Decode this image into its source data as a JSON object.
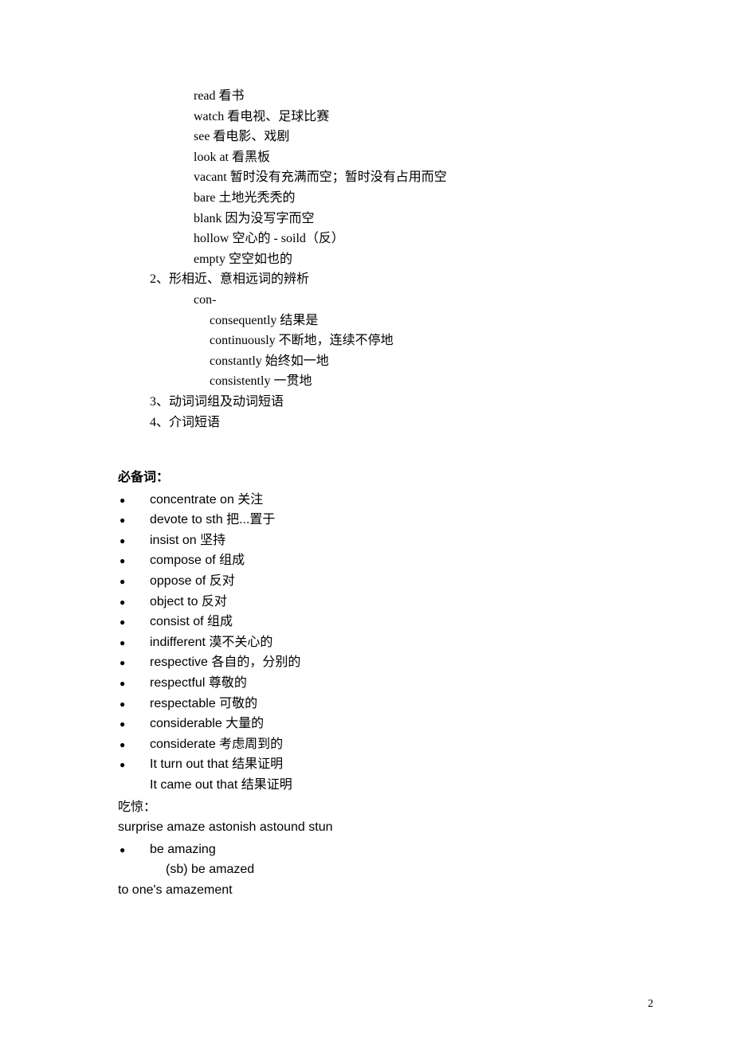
{
  "indentedWords": [
    "read   看书",
    "watch   看电视、足球比赛",
    "see   看电影、戏剧",
    "look at   看黑板",
    "vacant   暂时没有充满而空；暂时没有占用而空",
    "bare   土地光秃秃的",
    "blank   因为没写字而空",
    "hollow   空心的  - soild（反）",
    "empty   空空如也的"
  ],
  "numbered": {
    "item2": "2、形相近、意相远词的辨析",
    "conHead": "con-",
    "conSub": [
      "consequently   结果是",
      "continuously   不断地，连续不停地",
      "constantly   始终如一地",
      "consistently   一贯地"
    ],
    "item3": "3、动词词组及动词短语",
    "item4": "4、介词短语"
  },
  "mustKnowTitle": "必备词：",
  "mustKnowList": [
    "concentrate  on   关注",
    "devote to sth   把...置于",
    "insist on    坚持",
    "compose of 组成",
    "oppose of   反对",
    "object to   反对",
    "consist of   组成",
    "indifferent   漠不关心的",
    "respective   各自的，分别的",
    "respectful   尊敬的",
    "respectable   可敬的",
    "considerable   大量的",
    "considerate   考虑周到的",
    "It turn out that    结果证明"
  ],
  "noBulletLine": "It came out that   结果证明",
  "surpriseTitle": "吃惊：",
  "surpriseList": "surprise amaze astonish astound stun",
  "amazingBullet": "be amazing",
  "amazedIndent": " (sb) be amazed",
  "amazementLine": "to one's amazement",
  "pageNumber": "2"
}
